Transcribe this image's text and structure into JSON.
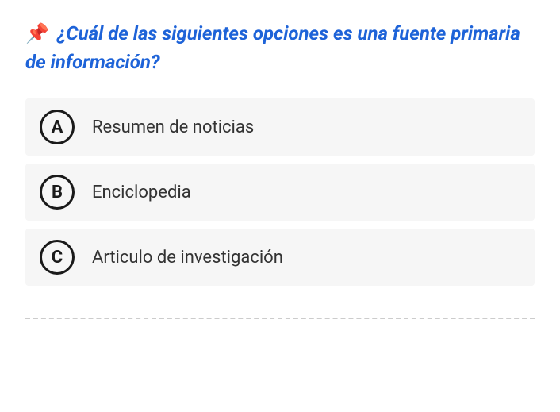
{
  "question": {
    "icon": "📌",
    "text": "¿Cuál de las siguientes opciones es una fuente primaria de información?",
    "title_color": "#1e63d8",
    "title_fontsize": 24
  },
  "options": [
    {
      "letter": "A",
      "text": "Resumen de noticias"
    },
    {
      "letter": "B",
      "text": "Enciclopedia"
    },
    {
      "letter": "C",
      "text": "Articulo de investigación"
    }
  ],
  "styling": {
    "option_bg": "#f6f6f6",
    "letter_border_color": "#1a1a1a",
    "option_text_color": "#333333",
    "divider_color": "#cccccc",
    "background_color": "#ffffff"
  }
}
